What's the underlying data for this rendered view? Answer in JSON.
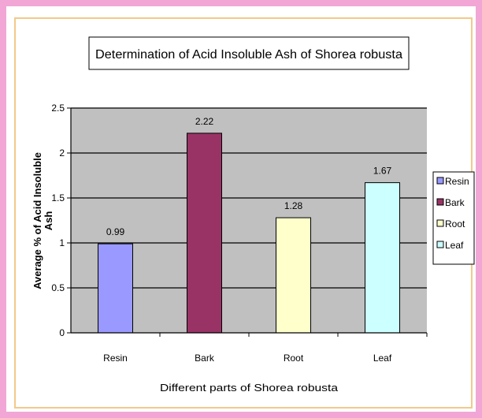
{
  "chart_data": {
    "type": "bar",
    "title": "Determination of Acid Insoluble Ash of Shorea robusta",
    "xlabel": "Different parts of Shorea robusta",
    "ylabel": "Average % of Acid Insoluble Ash",
    "categories": [
      "Resin",
      "Bark",
      "Root",
      "Leaf"
    ],
    "values": [
      0.99,
      2.22,
      1.28,
      1.67
    ],
    "data_labels": [
      "0.99",
      "2.22",
      "1.28",
      "1.67"
    ],
    "colors": [
      "#9999ff",
      "#993366",
      "#ffffcc",
      "#ccffff"
    ],
    "ylim": [
      0,
      2.5
    ],
    "yticks": [
      0,
      0.5,
      1,
      1.5,
      2,
      2.5
    ],
    "ytick_labels": [
      "0",
      "0.5",
      "1",
      "1.5",
      "2",
      "2.5"
    ],
    "grid": true,
    "plot_background": "#c0c0c0",
    "legend": {
      "position": "right",
      "entries": [
        "Resin",
        "Bark",
        "Root",
        "Leaf"
      ]
    }
  }
}
